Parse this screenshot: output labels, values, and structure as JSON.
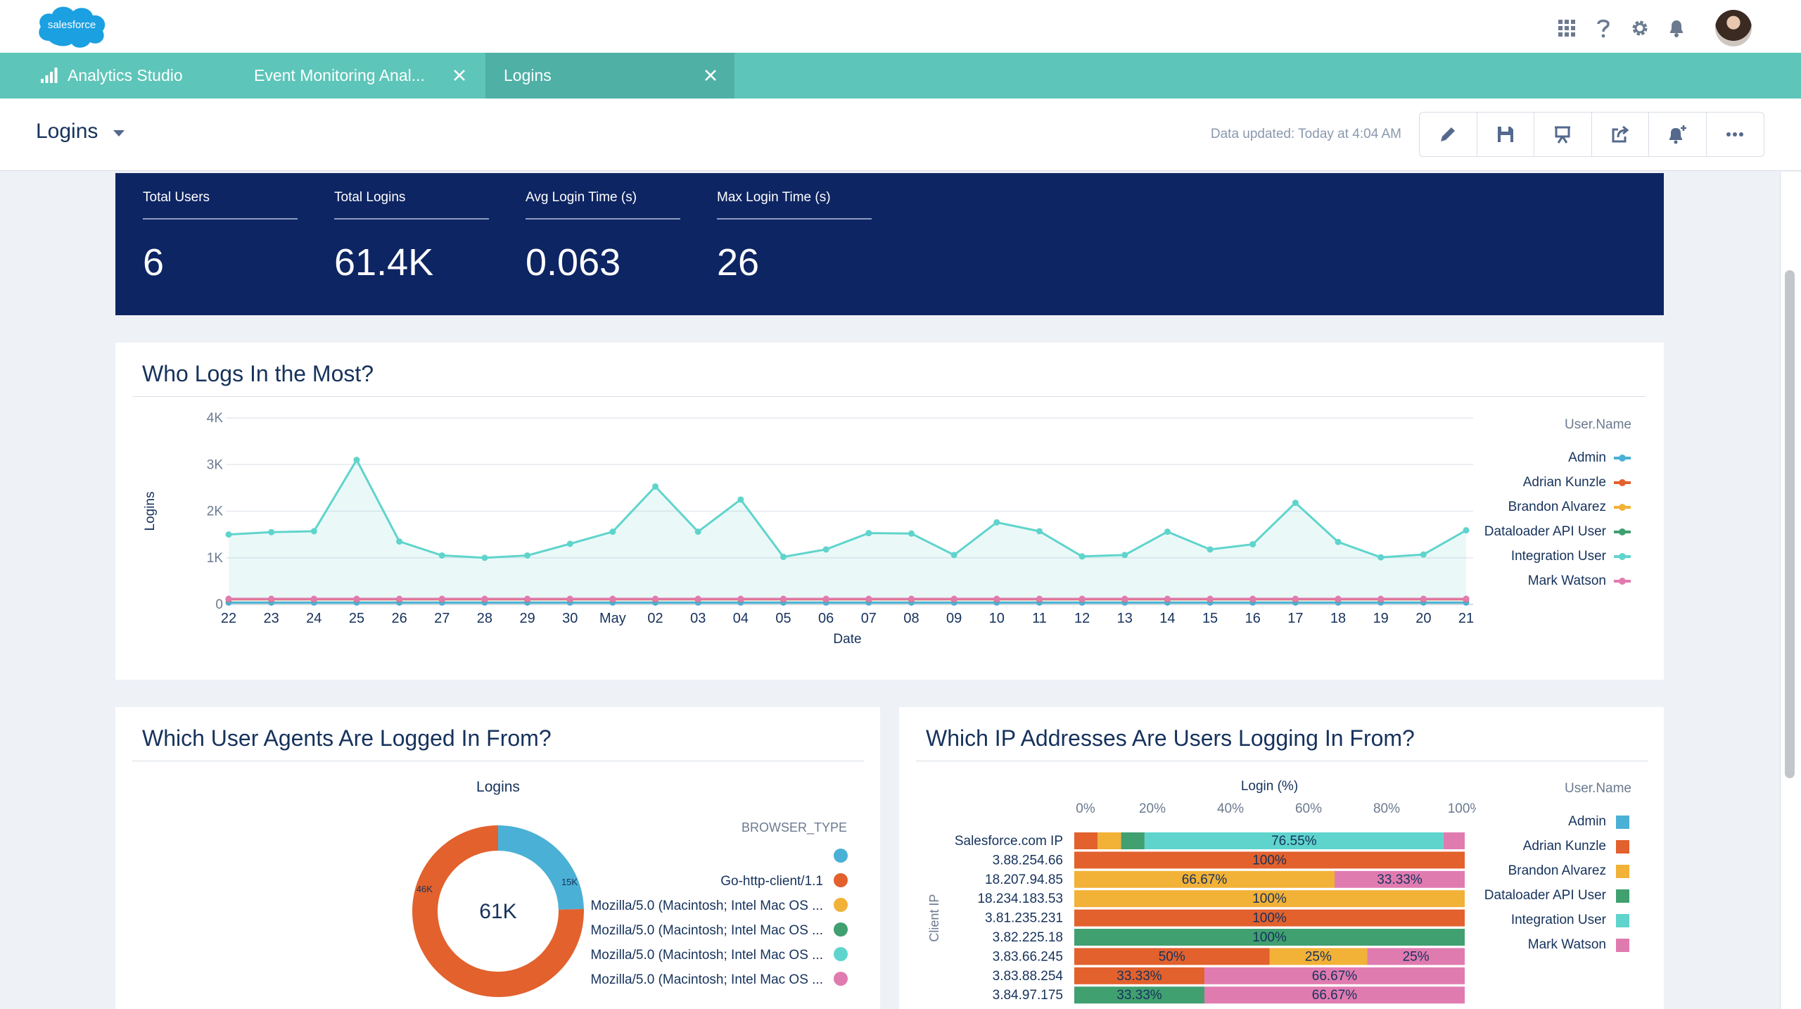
{
  "app": {
    "logo_text": "salesforce",
    "tabs": [
      {
        "label": "Analytics Studio"
      },
      {
        "label": "Event Monitoring Anal..."
      },
      {
        "label": "Logins"
      }
    ]
  },
  "header": {
    "title": "Logins",
    "updated": "Data updated: Today at 4:04 AM",
    "toolbar": [
      "pencil-icon",
      "save-icon",
      "presentation-icon",
      "share-icon",
      "bell-plus-icon",
      "more-icon"
    ]
  },
  "kpis": [
    {
      "label": "Total Users",
      "value": "6"
    },
    {
      "label": "Total Logins",
      "value": "61.4K"
    },
    {
      "label": "Avg Login Time (s)",
      "value": "0.063"
    },
    {
      "label": "Max Login Time (s)",
      "value": "26"
    }
  ],
  "panels": {
    "who": {
      "title": "Who Logs In the Most?"
    },
    "agents": {
      "title": "Which User Agents Are Logged In From?"
    },
    "ips": {
      "title": "Which IP Addresses Are Users Logging In From?"
    }
  },
  "users_legend": {
    "title": "User.Name",
    "items": [
      {
        "name": "Admin",
        "color": "#4bb0d5"
      },
      {
        "name": "Adrian Kunzle",
        "color": "#e2612d"
      },
      {
        "name": "Brandon Alvarez",
        "color": "#f2b137"
      },
      {
        "name": "Dataloader API User",
        "color": "#40a070"
      },
      {
        "name": "Integration User",
        "color": "#5fd4cc"
      },
      {
        "name": "Mark Watson",
        "color": "#e07bb0"
      }
    ]
  },
  "chart_data": [
    {
      "type": "line",
      "title": "Who Logs In the Most?",
      "xlabel": "Date",
      "ylabel": "Logins",
      "y_tick_labels": [
        "0",
        "1K",
        "2K",
        "3K",
        "4K"
      ],
      "ylim": [
        0,
        4000
      ],
      "categories": [
        "22",
        "23",
        "24",
        "25",
        "26",
        "27",
        "28",
        "29",
        "30",
        "May",
        "02",
        "03",
        "04",
        "05",
        "06",
        "07",
        "08",
        "09",
        "10",
        "11",
        "12",
        "13",
        "14",
        "15",
        "16",
        "17",
        "18",
        "19",
        "20",
        "21"
      ],
      "series": [
        {
          "name": "Integration User",
          "values": [
            1500,
            1550,
            1570,
            3100,
            1350,
            1050,
            1000,
            1050,
            1300,
            1560,
            2530,
            1560,
            2250,
            1020,
            1180,
            1530,
            1520,
            1060,
            1760,
            1570,
            1030,
            1060,
            1560,
            1180,
            1290,
            2180,
            1340,
            1010,
            1070,
            1590
          ]
        },
        {
          "name": "Admin",
          "values": [
            40,
            40,
            40,
            40,
            40,
            40,
            40,
            40,
            40,
            40,
            40,
            40,
            40,
            40,
            40,
            40,
            40,
            40,
            40,
            40,
            40,
            40,
            40,
            40,
            40,
            40,
            40,
            40,
            40,
            40
          ]
        },
        {
          "name": "Adrian Kunzle",
          "values": [
            110,
            110,
            110,
            110,
            110,
            110,
            110,
            110,
            110,
            110,
            110,
            110,
            110,
            110,
            110,
            110,
            110,
            110,
            110,
            110,
            110,
            110,
            110,
            110,
            110,
            110,
            110,
            110,
            110,
            110
          ]
        },
        {
          "name": "Mark Watson",
          "values": [
            120,
            120,
            120,
            120,
            120,
            120,
            120,
            120,
            120,
            120,
            120,
            120,
            120,
            120,
            120,
            120,
            120,
            120,
            120,
            120,
            120,
            120,
            120,
            120,
            120,
            120,
            120,
            120,
            120,
            120
          ]
        }
      ],
      "legend_title": "User.Name"
    },
    {
      "type": "pie",
      "title": "Logins",
      "center_label": "61K",
      "slice_labels": [
        "15K",
        "46K"
      ],
      "slices": [
        {
          "name": "Admin / BROWSER_TYPE blank",
          "value": 15,
          "color": "#4bb0d5"
        },
        {
          "name": "Go-http-client/1.1",
          "value": 46,
          "color": "#e2612d"
        }
      ],
      "legend_title": "BROWSER_TYPE",
      "legend": [
        {
          "label": "",
          "color": "#4bb0d5"
        },
        {
          "label": "Go-http-client/1.1",
          "color": "#e2612d"
        },
        {
          "label": "Mozilla/5.0 (Macintosh; Intel Mac OS ...",
          "color": "#f2b137"
        },
        {
          "label": "Mozilla/5.0 (Macintosh; Intel Mac OS ...",
          "color": "#40a070"
        },
        {
          "label": "Mozilla/5.0 (Macintosh; Intel Mac OS ...",
          "color": "#5fd4cc"
        },
        {
          "label": "Mozilla/5.0 (Macintosh; Intel Mac OS ...",
          "color": "#e07bb0"
        }
      ]
    },
    {
      "type": "bar",
      "orientation": "horizontal-stacked-100",
      "title": "Login (%)",
      "ylabel": "Client IP",
      "x_ticks": [
        "0%",
        "20%",
        "40%",
        "60%",
        "80%",
        "100%"
      ],
      "categories": [
        "Salesforce.com IP",
        "3.88.254.66",
        "18.207.94.85",
        "18.234.183.53",
        "3.81.235.231",
        "3.82.225.18",
        "3.83.66.245",
        "3.83.88.254",
        "3.84.97.175"
      ],
      "series_order": [
        "Admin",
        "Adrian Kunzle",
        "Brandon Alvarez",
        "Dataloader API User",
        "Integration User",
        "Mark Watson"
      ],
      "rows": [
        {
          "ip": "Salesforce.com IP",
          "segments": [
            {
              "user": "Adrian Kunzle",
              "pct": 6
            },
            {
              "user": "Brandon Alvarez",
              "pct": 6
            },
            {
              "user": "Dataloader API User",
              "pct": 6
            },
            {
              "user": "Integration User",
              "pct": 76.55,
              "label": "76.55%"
            },
            {
              "user": "Mark Watson",
              "pct": 5.45
            }
          ]
        },
        {
          "ip": "3.88.254.66",
          "segments": [
            {
              "user": "Adrian Kunzle",
              "pct": 100,
              "label": "100%"
            }
          ]
        },
        {
          "ip": "18.207.94.85",
          "segments": [
            {
              "user": "Brandon Alvarez",
              "pct": 66.67,
              "label": "66.67%"
            },
            {
              "user": "Mark Watson",
              "pct": 33.33,
              "label": "33.33%"
            }
          ]
        },
        {
          "ip": "18.234.183.53",
          "segments": [
            {
              "user": "Brandon Alvarez",
              "pct": 100,
              "label": "100%"
            }
          ]
        },
        {
          "ip": "3.81.235.231",
          "segments": [
            {
              "user": "Adrian Kunzle",
              "pct": 100,
              "label": "100%"
            }
          ]
        },
        {
          "ip": "3.82.225.18",
          "segments": [
            {
              "user": "Dataloader API User",
              "pct": 100,
              "label": "100%"
            }
          ]
        },
        {
          "ip": "3.83.66.245",
          "segments": [
            {
              "user": "Adrian Kunzle",
              "pct": 50,
              "label": "50%"
            },
            {
              "user": "Brandon Alvarez",
              "pct": 25,
              "label": "25%"
            },
            {
              "user": "Mark Watson",
              "pct": 25,
              "label": "25%"
            }
          ]
        },
        {
          "ip": "3.83.88.254",
          "segments": [
            {
              "user": "Adrian Kunzle",
              "pct": 33.33,
              "label": "33.33%"
            },
            {
              "user": "Mark Watson",
              "pct": 66.67,
              "label": "66.67%"
            }
          ]
        },
        {
          "ip": "3.84.97.175",
          "segments": [
            {
              "user": "Dataloader API User",
              "pct": 33.33,
              "label": "33.33%"
            },
            {
              "user": "Mark Watson",
              "pct": 66.67,
              "label": "66.67%"
            }
          ]
        }
      ]
    }
  ]
}
